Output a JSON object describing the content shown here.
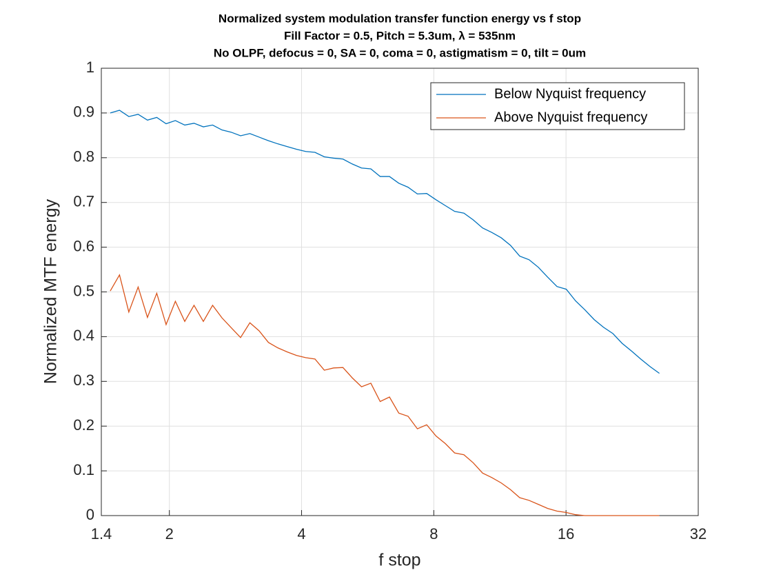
{
  "chart_data": {
    "type": "line",
    "title": [
      "Normalized system modulation transfer function energy vs f stop",
      "Fill Factor = 0.5, Pitch = 5.3um, λ = 535nm",
      "No OLPF, defocus = 0, SA = 0, coma = 0, astigmatism = 0, tilt = 0um"
    ],
    "xlabel": "f stop",
    "ylabel": "Normalized MTF energy",
    "x": [
      1.467,
      1.54,
      1.617,
      1.698,
      1.783,
      1.872,
      1.966,
      2.064,
      2.168,
      2.276,
      2.39,
      2.509,
      2.635,
      2.766,
      2.905,
      3.05,
      3.202,
      3.362,
      3.531,
      3.707,
      3.893,
      4.087,
      4.291,
      4.506,
      4.731,
      4.968,
      5.216,
      5.477,
      5.751,
      6.039,
      6.341,
      6.658,
      6.99,
      7.34,
      7.707,
      8.092,
      8.497,
      8.922,
      9.368,
      9.836,
      10.33,
      10.84,
      11.39,
      11.96,
      12.55,
      13.18,
      13.84,
      14.53,
      15.26,
      16.02,
      16.82,
      17.66,
      18.55,
      19.47,
      20.45,
      21.47,
      22.54,
      23.67,
      24.86,
      26.1
    ],
    "series": [
      {
        "name": "Below Nyquist frequency",
        "color": "#0072bd",
        "values": [
          0.9,
          0.906,
          0.892,
          0.897,
          0.884,
          0.89,
          0.876,
          0.883,
          0.873,
          0.877,
          0.869,
          0.873,
          0.862,
          0.857,
          0.849,
          0.854,
          0.846,
          0.838,
          0.831,
          0.825,
          0.819,
          0.814,
          0.812,
          0.802,
          0.799,
          0.797,
          0.786,
          0.777,
          0.775,
          0.758,
          0.758,
          0.743,
          0.734,
          0.719,
          0.72,
          0.706,
          0.693,
          0.68,
          0.676,
          0.661,
          0.643,
          0.633,
          0.621,
          0.604,
          0.58,
          0.572,
          0.555,
          0.533,
          0.512,
          0.506,
          0.48,
          0.46,
          0.438,
          0.421,
          0.407,
          0.385,
          0.368,
          0.35,
          0.333,
          0.318
        ]
      },
      {
        "name": "Above Nyquist frequency",
        "color": "#d95319",
        "values": [
          0.502,
          0.538,
          0.455,
          0.511,
          0.443,
          0.497,
          0.427,
          0.479,
          0.434,
          0.47,
          0.434,
          0.47,
          0.442,
          0.42,
          0.398,
          0.431,
          0.413,
          0.387,
          0.375,
          0.366,
          0.358,
          0.353,
          0.35,
          0.325,
          0.33,
          0.331,
          0.308,
          0.288,
          0.296,
          0.255,
          0.265,
          0.229,
          0.222,
          0.194,
          0.203,
          0.178,
          0.161,
          0.14,
          0.136,
          0.118,
          0.095,
          0.085,
          0.073,
          0.058,
          0.04,
          0.034,
          0.025,
          0.016,
          0.01,
          0.007,
          0.002,
          0,
          0,
          0,
          0,
          0,
          0,
          0,
          0,
          0
        ]
      }
    ],
    "xscale": "log",
    "xlim": [
      1.4,
      32
    ],
    "xticks": [
      1.4,
      2,
      4,
      8,
      16,
      32
    ],
    "ylim": [
      0,
      1
    ],
    "yticks": [
      0,
      0.1,
      0.2,
      0.3,
      0.4,
      0.5,
      0.6,
      0.7,
      0.8,
      0.9,
      1
    ],
    "grid": true,
    "legend": "northeast"
  }
}
